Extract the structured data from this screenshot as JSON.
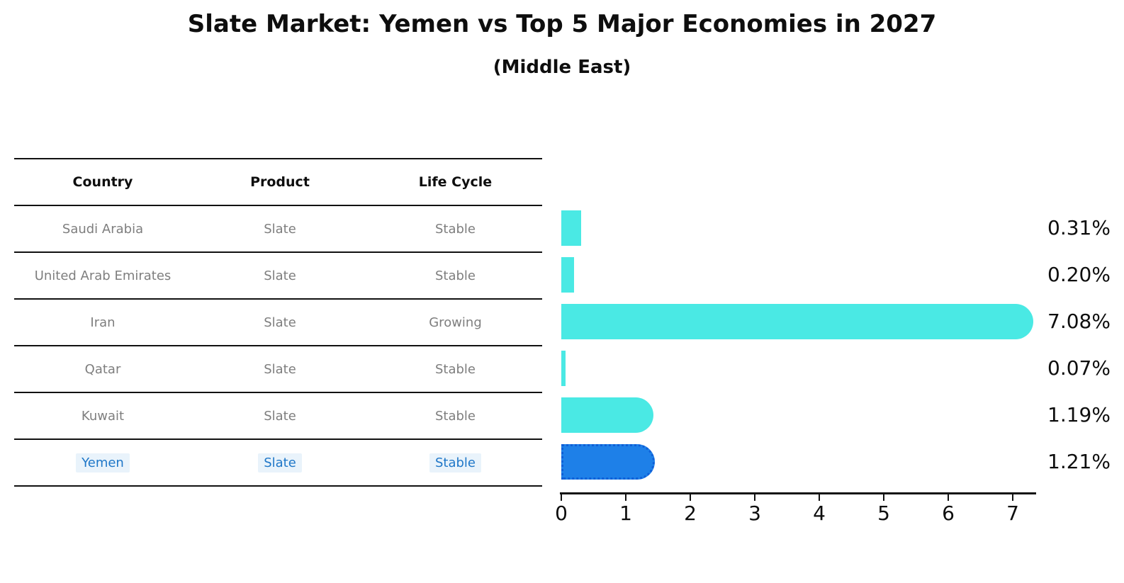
{
  "title": "Slate Market: Yemen vs Top 5 Major Economies in 2027",
  "subtitle": "(Middle East)",
  "table": {
    "headers": [
      "Country",
      "Product",
      "Life Cycle"
    ],
    "rows": [
      {
        "country": "Saudi Arabia",
        "product": "Slate",
        "life_cycle": "Stable",
        "highlighted": false
      },
      {
        "country": "United Arab Emirates",
        "product": "Slate",
        "life_cycle": "Stable",
        "highlighted": false
      },
      {
        "country": "Iran",
        "product": "Slate",
        "life_cycle": "Growing",
        "highlighted": false
      },
      {
        "country": "Qatar",
        "product": "Slate",
        "life_cycle": "Stable",
        "highlighted": false
      },
      {
        "country": "Kuwait",
        "product": "Slate",
        "life_cycle": "Stable",
        "highlighted": false
      },
      {
        "country": "Yemen",
        "product": "Slate",
        "life_cycle": "Stable",
        "highlighted": true
      }
    ]
  },
  "chart_data": {
    "type": "bar",
    "orientation": "horizontal",
    "categories": [
      "Saudi Arabia",
      "United Arab Emirates",
      "Iran",
      "Qatar",
      "Kuwait",
      "Yemen"
    ],
    "values": [
      0.31,
      0.2,
      7.08,
      0.07,
      1.19,
      1.21
    ],
    "value_labels": [
      "0.31%",
      "0.20%",
      "7.08%",
      "0.07%",
      "1.19%",
      "1.21%"
    ],
    "x_ticks": [
      0,
      1,
      2,
      3,
      4,
      5,
      6,
      7
    ],
    "xlim": [
      0,
      7.4
    ],
    "grid": false,
    "legend": false,
    "bar_color": "#4AE9E4",
    "highlight_bar_color": "#1E80E8",
    "highlight_border_color": "#0F5FD7",
    "highlight_text_color": "#1F77C8",
    "highlight_index": 5
  }
}
